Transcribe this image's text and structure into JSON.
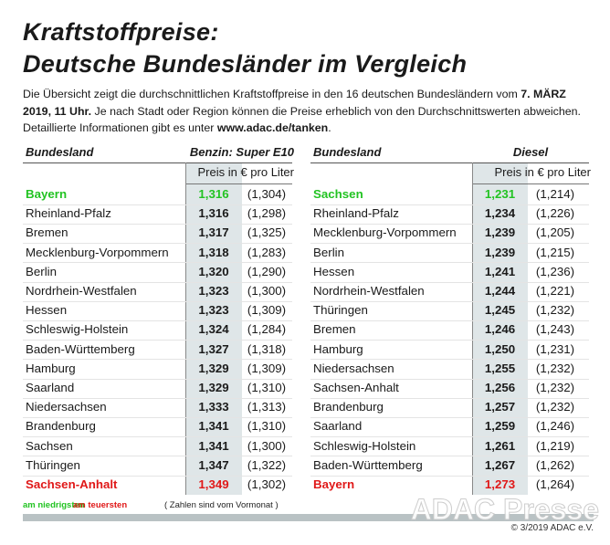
{
  "title": [
    "Kraftstoffpreise:",
    "Deutsche Bundesländer im Vergleich"
  ],
  "intro": [
    {
      "text": "Die Übersicht zeigt die durchschnittlichen Kraftstoffpreise in den 16 deutschen Bundesländern vom ",
      "bold": false
    },
    {
      "text": "7. MÄRZ 2019, 11 Uhr.",
      "bold": true
    },
    {
      "text": " Je nach Stadt oder Region können die Preise erheblich von den Durchschnittswerten abweichen. Detaillierte Informationen gibt es unter ",
      "bold": false
    },
    {
      "text": "www.adac.de/tanken",
      "bold": true
    },
    {
      "text": ".",
      "bold": false
    }
  ],
  "tables": [
    {
      "header": {
        "label": "Bundesland",
        "fuel": "Benzin: Super E10",
        "unit": "Preis in € pro Liter"
      },
      "rows": [
        [
          "Bayern",
          "1,316",
          "(1,304)"
        ],
        [
          "Rheinland-Pfalz",
          "1,316",
          "(1,298)"
        ],
        [
          "Bremen",
          "1,317",
          "(1,325)"
        ],
        [
          "Mecklenburg-Vorpommern",
          "1,318",
          "(1,283)"
        ],
        [
          "Berlin",
          "1,320",
          "(1,290)"
        ],
        [
          "Nordrhein-Westfalen",
          "1,323",
          "(1,300)"
        ],
        [
          "Hessen",
          "1,323",
          "(1,309)"
        ],
        [
          "Schleswig-Holstein",
          "1,324",
          "(1,284)"
        ],
        [
          "Baden-Württemberg",
          "1,327",
          "(1,318)"
        ],
        [
          "Hamburg",
          "1,329",
          "(1,309)"
        ],
        [
          "Saarland",
          "1,329",
          "(1,310)"
        ],
        [
          "Niedersachsen",
          "1,333",
          "(1,313)"
        ],
        [
          "Brandenburg",
          "1,341",
          "(1,310)"
        ],
        [
          "Sachsen",
          "1,341",
          "(1,300)"
        ],
        [
          "Thüringen",
          "1,347",
          "(1,322)"
        ],
        [
          "Sachsen-Anhalt",
          "1,349",
          "(1,302)"
        ]
      ]
    },
    {
      "header": {
        "label": "Bundesland",
        "fuel": "Diesel",
        "unit": "Preis in € pro Liter"
      },
      "rows": [
        [
          "Sachsen",
          "1,231",
          "(1,214)"
        ],
        [
          "Rheinland-Pfalz",
          "1,234",
          "(1,226)"
        ],
        [
          "Mecklenburg-Vorpommern",
          "1,239",
          "(1,205)"
        ],
        [
          "Berlin",
          "1,239",
          "(1,215)"
        ],
        [
          "Hessen",
          "1,241",
          "(1,236)"
        ],
        [
          "Nordrhein-Westfalen",
          "1,244",
          "(1,221)"
        ],
        [
          "Thüringen",
          "1,245",
          "(1,232)"
        ],
        [
          "Bremen",
          "1,246",
          "(1,243)"
        ],
        [
          "Hamburg",
          "1,250",
          "(1,231)"
        ],
        [
          "Niedersachsen",
          "1,255",
          "(1,232)"
        ],
        [
          "Sachsen-Anhalt",
          "1,256",
          "(1,232)"
        ],
        [
          "Brandenburg",
          "1,257",
          "(1,232)"
        ],
        [
          "Saarland",
          "1,259",
          "(1,246)"
        ],
        [
          "Schleswig-Holstein",
          "1,261",
          "(1,219)"
        ],
        [
          "Baden-Württemberg",
          "1,267",
          "(1,262)"
        ],
        [
          "Bayern",
          "1,273",
          "(1,264)"
        ]
      ]
    }
  ],
  "legend": [
    {
      "text": "am niedrigsten",
      "color": "#22c322"
    },
    {
      "text": "am teuersten",
      "color": "#e01818"
    },
    {
      "text": "( Zahlen sind vom Vormonat )",
      "color": "#222222"
    }
  ],
  "watermark": "ADAC Presse",
  "copyright": "© 3/2019 ADAC e.V."
}
